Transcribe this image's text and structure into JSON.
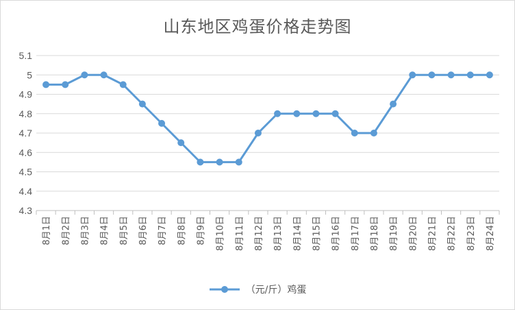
{
  "chart_data": {
    "type": "line",
    "title": "山东地区鸡蛋价格走势图",
    "categories": [
      "8月1日",
      "8月2日",
      "8月3日",
      "8月4日",
      "8月5日",
      "8月6日",
      "8月7日",
      "8月8日",
      "8月9日",
      "8月10日",
      "8月11日",
      "8月12日",
      "8月13日",
      "8月14日",
      "8月15日",
      "8月16日",
      "8月17日",
      "8月18日",
      "8月19日",
      "8月20日",
      "8月21日",
      "8月22日",
      "8月23日",
      "8月24日"
    ],
    "series": [
      {
        "name": "（元/斤）鸡蛋",
        "values": [
          4.95,
          4.95,
          5,
          5,
          4.95,
          4.85,
          4.75,
          4.65,
          4.55,
          4.55,
          4.55,
          4.7,
          4.8,
          4.8,
          4.8,
          4.8,
          4.7,
          4.7,
          4.85,
          5,
          5,
          5,
          5,
          5
        ]
      }
    ],
    "ylim": [
      4.3,
      5.1
    ],
    "yticks": [
      "4.3",
      "4.4",
      "4.5",
      "4.6",
      "4.7",
      "4.8",
      "4.9",
      "5",
      "5.1"
    ],
    "grid": true,
    "legend": "bottom",
    "color": "#5b9bd5"
  }
}
